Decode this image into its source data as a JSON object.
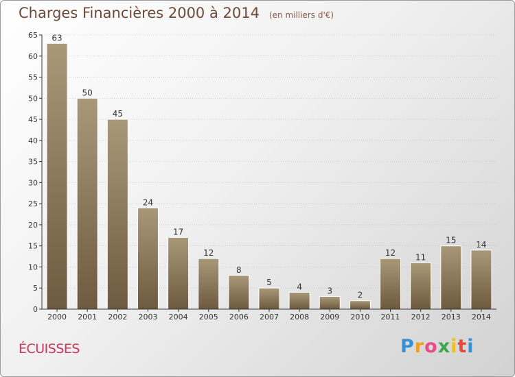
{
  "title": "Charges Financières 2000 à 2014",
  "subtitle": "(en milliers d'€)",
  "commune": "ÉCUISSES",
  "logo": {
    "letters": [
      "P",
      "r",
      "o",
      "x",
      "i",
      "t",
      "i"
    ],
    "colors": [
      "#3a8fd9",
      "#f0a020",
      "#e84a8a",
      "#3aa84a",
      "#f0c020",
      "#e84a3a",
      "#3a8fd9"
    ]
  },
  "colors": {
    "bar_top": "#a89878",
    "bar_bottom": "#6e5a3e",
    "axis": "#333333",
    "grid": "#bbbbbb"
  },
  "chart_data": {
    "type": "bar",
    "categories": [
      "2000",
      "2001",
      "2002",
      "2003",
      "2004",
      "2005",
      "2006",
      "2007",
      "2008",
      "2009",
      "2010",
      "2011",
      "2012",
      "2013",
      "2014"
    ],
    "values": [
      63,
      50,
      45,
      24,
      17,
      12,
      8,
      5,
      4,
      3,
      2,
      12,
      11,
      15,
      14
    ],
    "data_labels": [
      "63",
      "50",
      "45",
      "24",
      "17",
      "12",
      "8",
      "5",
      "4",
      "3",
      "2",
      "12",
      "11",
      "15",
      "14"
    ],
    "title": "Charges Financières 2000 à 2014",
    "subtitle": "(en milliers d'€)",
    "xlabel": "",
    "ylabel": "",
    "ylim": [
      0,
      65
    ],
    "yticks": [
      "0",
      "5",
      "10",
      "15",
      "20",
      "25",
      "30",
      "35",
      "40",
      "45",
      "50",
      "55",
      "60",
      "65"
    ],
    "grid": true
  }
}
